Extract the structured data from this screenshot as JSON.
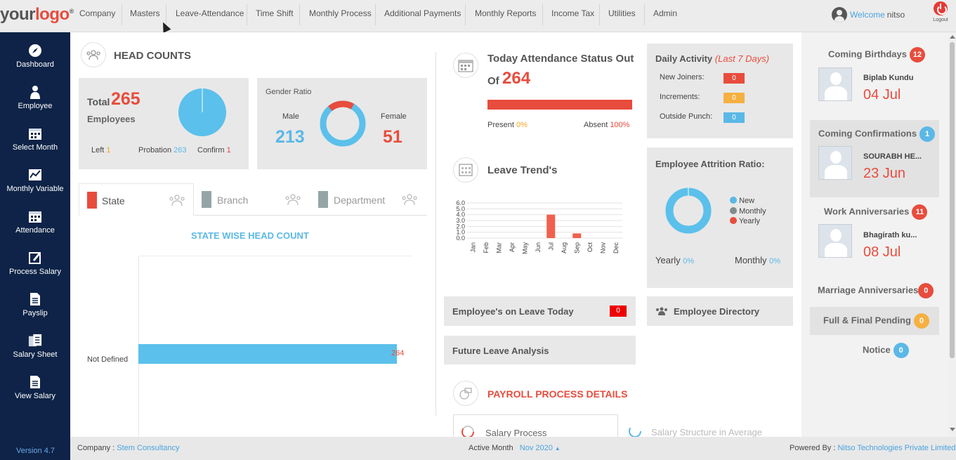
{
  "logo": {
    "part1": "your",
    "part2": "logo",
    "mark": "®"
  },
  "nav": [
    "Company",
    "Masters",
    "Leave-Attendance",
    "Time Shift",
    "Monthly Process",
    "Additional Payments",
    "Monthly Reports",
    "Income Tax",
    "Utilities",
    "Admin"
  ],
  "user": {
    "welcome": "Welcome",
    "name": "nitso",
    "logout": "Logout"
  },
  "sidebar": [
    {
      "label": "Dashboard",
      "icon": "compass-icon"
    },
    {
      "label": "Employee",
      "icon": "person-icon"
    },
    {
      "label": "Select Month",
      "icon": "calendar-icon"
    },
    {
      "label": "Monthly Variable",
      "icon": "chart-icon"
    },
    {
      "label": "Attendance",
      "icon": "calendar-icon"
    },
    {
      "label": "Process Salary",
      "icon": "edit-icon"
    },
    {
      "label": "Payslip",
      "icon": "document-icon"
    },
    {
      "label": "Salary Sheet",
      "icon": "sheet-icon"
    },
    {
      "label": "View Salary",
      "icon": "document-icon"
    }
  ],
  "version": "Version 4.7",
  "headcounts": {
    "title": "HEAD COUNTS",
    "total_label": "Total",
    "total": "265",
    "employees": "Employees",
    "left_label": "Left",
    "left": "1",
    "probation_label": "Probation",
    "probation": "263",
    "confirm_label": "Confirm",
    "confirm": "1"
  },
  "gender": {
    "title": "Gender Ratio",
    "male_label": "Male",
    "male": "213",
    "female_label": "Female",
    "female": "51"
  },
  "tabs": [
    "State",
    "Branch",
    "Department"
  ],
  "state_chart": {
    "title": "STATE WISE HEAD COUNT",
    "category": "Not Defined",
    "value_label": "264"
  },
  "attendance": {
    "title_line1": "Today Attendance Status Out",
    "title_of": "Of",
    "count": "264",
    "present_label": "Present",
    "present": "0%",
    "absent_label": "Absent",
    "absent": "100%"
  },
  "leave_trend": {
    "title": "Leave Trend's"
  },
  "leave_on_today": {
    "label": "Employee's on Leave Today",
    "count": "0"
  },
  "future_leave": "Future Leave Analysis",
  "payroll": {
    "title": "PAYROLL PROCESS DETAILS",
    "salary_process": "Salary Process",
    "salary_structure": "Salary Structure in Average"
  },
  "daily": {
    "title": "Daily Activity",
    "subtitle": "(Last 7 Days)",
    "rows": [
      {
        "label": "New Joiners:",
        "value": "0",
        "color": "#e84c3d"
      },
      {
        "label": "Increments:",
        "value": "0",
        "color": "#f5b041"
      },
      {
        "label": "Outside Punch:",
        "value": "0",
        "color": "#5bb8e6"
      }
    ]
  },
  "attrition": {
    "title": "Employee Attrition Ratio:",
    "legend": [
      {
        "label": "New",
        "color": "#5bb8e6"
      },
      {
        "label": "Monthly",
        "color": "#7f8c8d"
      },
      {
        "label": "Yearly",
        "color": "#e84c3d"
      }
    ],
    "yearly_label": "Yearly",
    "yearly": "0%",
    "monthly_label": "Monthly",
    "monthly": "0%"
  },
  "directory": "Employee Directory",
  "right": {
    "birthdays": {
      "title": "Coming Birthdays",
      "count": "12",
      "name": "Biplab Kundu",
      "date": "04 Jul"
    },
    "confirmations": {
      "title": "Coming Confirmations",
      "count": "1",
      "name": "SOURABH HE...",
      "date": "23 Jun"
    },
    "work_anniv": {
      "title": "Work Anniversaries",
      "count": "11",
      "name": "Bhagirath ku...",
      "date": "08 Jul"
    },
    "marriage": {
      "title": "Marriage Anniversaries",
      "count": "0"
    },
    "full_final": {
      "title": "Full & Final Pending",
      "count": "0"
    },
    "notice": {
      "title": "Notice",
      "count": "0"
    }
  },
  "footer": {
    "company_label": "Company :",
    "company": "Stem Consultancy",
    "active_label": "Active Month",
    "month": "Nov 2020",
    "powered_label": "Powered By :",
    "powered": "Nitso Technologies Private Limited"
  },
  "chart_data": [
    {
      "type": "pie",
      "title": "",
      "categories": [
        "Left",
        "Probation",
        "Confirm"
      ],
      "values": [
        1,
        263,
        1
      ]
    },
    {
      "type": "pie",
      "title": "Gender Ratio",
      "categories": [
        "Male",
        "Female"
      ],
      "values": [
        213,
        51
      ]
    },
    {
      "type": "bar",
      "orientation": "horizontal",
      "title": "STATE WISE HEAD COUNT",
      "categories": [
        "Not Defined"
      ],
      "values": [
        264
      ],
      "data_labels": [
        "264"
      ]
    },
    {
      "type": "bar",
      "title": "",
      "categories": [
        "Jan",
        "Feb",
        "Mar",
        "Apr",
        "May",
        "Jun",
        "Jul",
        "Aug",
        "Sep",
        "Oct",
        "Nov",
        "Dec"
      ],
      "values": [
        0,
        0,
        0,
        0,
        0,
        0,
        4.0,
        0,
        0.8,
        0,
        0,
        0
      ],
      "yticks": [
        "0.0",
        "1.0",
        "2.0",
        "3.0",
        "4.0",
        "5.0",
        "6.0"
      ],
      "ylim": [
        0,
        6
      ]
    },
    {
      "type": "pie",
      "title": "Employee Attrition Ratio:",
      "categories": [
        "New",
        "Monthly",
        "Yearly"
      ],
      "values": [
        1,
        0,
        0
      ]
    }
  ]
}
